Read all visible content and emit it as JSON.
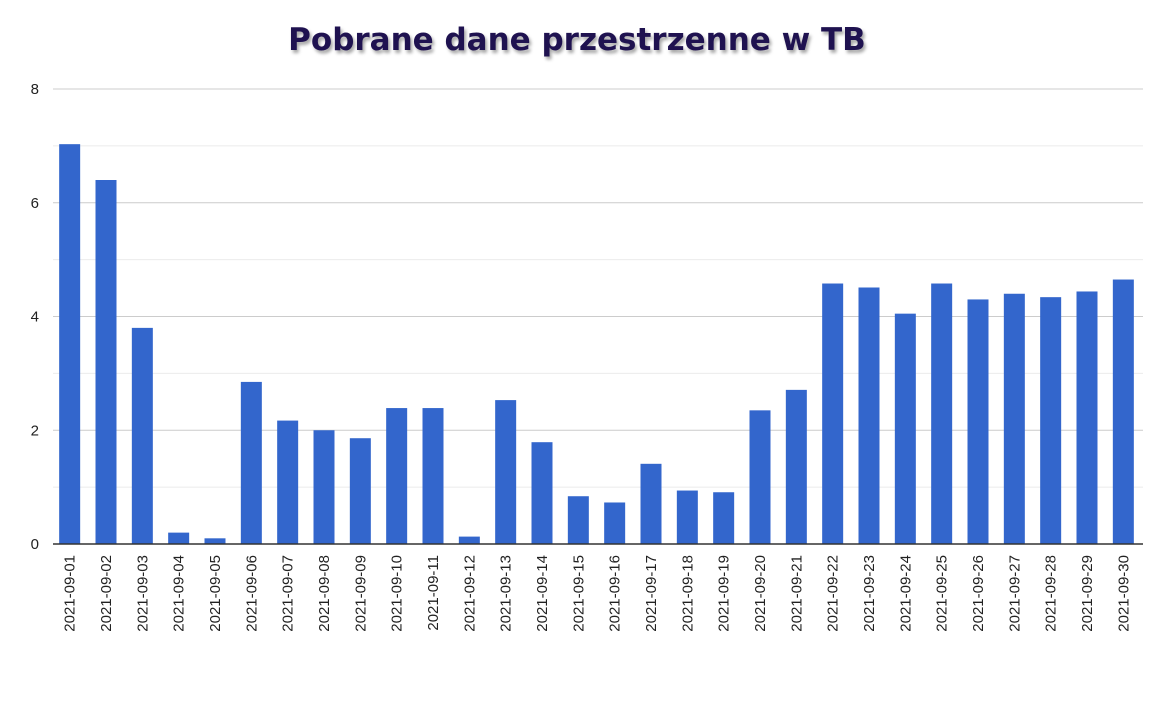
{
  "chart_data": {
    "type": "bar",
    "title": "Pobrane dane przestrzenne w TB",
    "xlabel": "",
    "ylabel": "",
    "ylim": [
      0,
      8
    ],
    "yticks": [
      0,
      2,
      4,
      6,
      8
    ],
    "grid": true,
    "legend": "none",
    "bar_color": "#3366cc",
    "categories": [
      "2021-09-01",
      "2021-09-02",
      "2021-09-03",
      "2021-09-04",
      "2021-09-05",
      "2021-09-06",
      "2021-09-07",
      "2021-09-08",
      "2021-09-09",
      "2021-09-10",
      "2021-09-11",
      "2021-09-12",
      "2021-09-13",
      "2021-09-14",
      "2021-09-15",
      "2021-09-16",
      "2021-09-17",
      "2021-09-18",
      "2021-09-19",
      "2021-09-20",
      "2021-09-21",
      "2021-09-22",
      "2021-09-23",
      "2021-09-24",
      "2021-09-25",
      "2021-09-26",
      "2021-09-27",
      "2021-09-28",
      "2021-09-29",
      "2021-09-30"
    ],
    "values": [
      7.03,
      6.4,
      3.8,
      0.2,
      0.1,
      2.85,
      2.17,
      2.0,
      1.86,
      2.39,
      2.39,
      0.13,
      2.53,
      1.79,
      0.84,
      0.73,
      1.41,
      0.94,
      0.91,
      2.35,
      2.71,
      4.58,
      4.51,
      4.05,
      4.58,
      4.3,
      4.4,
      4.34,
      4.44,
      4.65
    ]
  }
}
